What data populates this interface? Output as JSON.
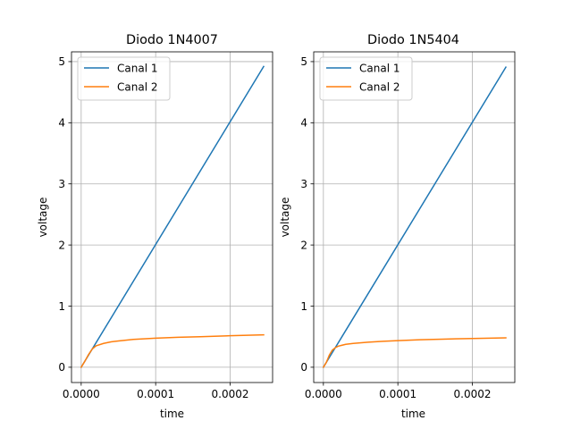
{
  "chart_data": [
    {
      "type": "line",
      "title": "Diodo 1N4007",
      "xlabel": "time",
      "ylabel": "voltage",
      "xlim": [
        -1.3e-05,
        0.000257
      ],
      "ylim": [
        -0.25,
        5.16
      ],
      "xticks": [
        0,
        0.0001,
        0.0002
      ],
      "xtick_labels": [
        "0.0000",
        "0.0001",
        "0.0002"
      ],
      "yticks": [
        0,
        1,
        2,
        3,
        4,
        5
      ],
      "ytick_labels": [
        "0",
        "1",
        "2",
        "3",
        "4",
        "5"
      ],
      "grid": true,
      "legend_position": "upper-left",
      "series": [
        {
          "name": "Canal 1",
          "color": "#1f77b4",
          "x": [
            0,
            0.000245
          ],
          "y": [
            0,
            4.92
          ]
        },
        {
          "name": "Canal 2",
          "color": "#ff7f0e",
          "x": [
            0,
            5e-06,
            1e-05,
            1.5e-05,
            2e-05,
            3e-05,
            4e-05,
            5e-05,
            7e-05,
            0.0001,
            0.00013,
            0.00016,
            0.0002,
            0.000245
          ],
          "y": [
            0,
            0.1,
            0.21,
            0.3,
            0.35,
            0.39,
            0.415,
            0.43,
            0.455,
            0.475,
            0.49,
            0.5,
            0.515,
            0.53
          ]
        }
      ]
    },
    {
      "type": "line",
      "title": "Diodo 1N5404",
      "xlabel": "time",
      "ylabel": "voltage",
      "xlim": [
        -1.3e-05,
        0.000257
      ],
      "ylim": [
        -0.25,
        5.16
      ],
      "xticks": [
        0,
        0.0001,
        0.0002
      ],
      "xtick_labels": [
        "0.0000",
        "0.0001",
        "0.0002"
      ],
      "yticks": [
        0,
        1,
        2,
        3,
        4,
        5
      ],
      "ytick_labels": [
        "0",
        "1",
        "2",
        "3",
        "4",
        "5"
      ],
      "grid": true,
      "legend_position": "upper-left",
      "series": [
        {
          "name": "Canal 1",
          "color": "#1f77b4",
          "x": [
            0,
            0.000245
          ],
          "y": [
            0,
            4.91
          ]
        },
        {
          "name": "Canal 2",
          "color": "#ff7f0e",
          "x": [
            0,
            4e-06,
            8e-06,
            1.2e-05,
            1.6e-05,
            2e-05,
            3e-05,
            4e-05,
            6e-05,
            8e-05,
            0.0001,
            0.00013,
            0.00016,
            0.0002,
            0.000245
          ],
          "y": [
            0,
            0.08,
            0.2,
            0.28,
            0.32,
            0.345,
            0.375,
            0.39,
            0.41,
            0.425,
            0.435,
            0.45,
            0.46,
            0.47,
            0.48
          ]
        }
      ]
    }
  ]
}
